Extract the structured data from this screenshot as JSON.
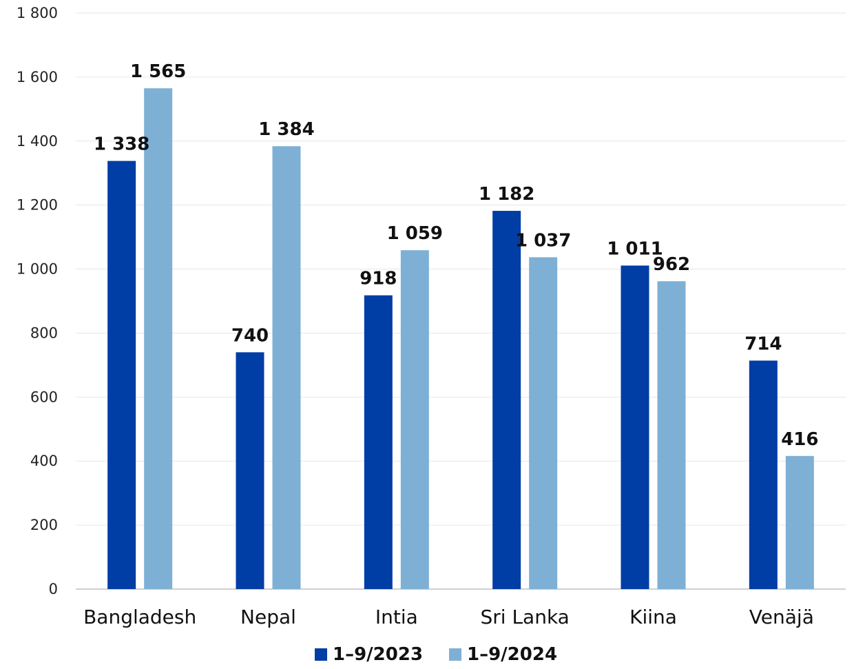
{
  "chart_data": {
    "type": "bar",
    "title": "",
    "xlabel": "",
    "ylabel": "",
    "ylim": [
      0,
      1800
    ],
    "yticks": [
      0,
      200,
      400,
      600,
      800,
      1000,
      1200,
      1400,
      1600,
      1800
    ],
    "ytick_labels": [
      "0",
      "200",
      "400",
      "600",
      "800",
      "1 000",
      "1 200",
      "1 400",
      "1 600",
      "1 800"
    ],
    "categories": [
      "Bangladesh",
      "Nepal",
      "Intia",
      "Sri Lanka",
      "Kiina",
      "Venäjä"
    ],
    "series": [
      {
        "name": "1–9/2023",
        "color": "#003DA5",
        "values": [
          1338,
          740,
          918,
          1182,
          1011,
          714
        ],
        "labels": [
          "1 338",
          "740",
          "918",
          "1 182",
          "1 011",
          "714"
        ]
      },
      {
        "name": "1–9/2024",
        "color": "#7EB0D5",
        "values": [
          1565,
          1384,
          1059,
          1037,
          962,
          416
        ],
        "labels": [
          "1 565",
          "1 384",
          "1 059",
          "1 037",
          "962",
          "416"
        ]
      }
    ],
    "grid": true,
    "legend": "bottom-center"
  }
}
